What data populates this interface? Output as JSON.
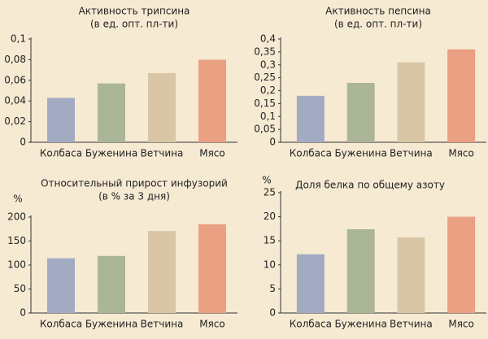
{
  "chart_data": [
    {
      "type": "bar",
      "title": "Активность трипсина",
      "subtitle": "(в ед. опт. пл-ти)",
      "categories": [
        "Колбаса",
        "Буженина",
        "Ветчина",
        "Мясо"
      ],
      "values": [
        0.043,
        0.057,
        0.067,
        0.08
      ],
      "colors": [
        "#a2abc2",
        "#abb597",
        "#d9c6a6",
        "#e9a083"
      ],
      "ylim": [
        0,
        0.1
      ],
      "yticks": [
        0,
        {
          "value": 0.02,
          "label": "0,02"
        },
        {
          "value": 0.04,
          "label": "0,04"
        },
        {
          "value": 0.06,
          "label": "0,06"
        },
        {
          "value": 0.08,
          "label": "0,08"
        },
        {
          "value": 0.1,
          "label": "0,1"
        }
      ]
    },
    {
      "type": "bar",
      "title": "Активность  пепсина",
      "subtitle": "(в ед. опт. пл-ти)",
      "categories": [
        "Колбаса",
        "Буженина",
        "Ветчина",
        "Мясо"
      ],
      "values": [
        0.18,
        0.23,
        0.31,
        0.36
      ],
      "colors": [
        "#a2abc2",
        "#abb597",
        "#d9c6a6",
        "#e9a083"
      ],
      "ylim": [
        0,
        0.4
      ],
      "yticks": [
        0,
        {
          "value": 0.05,
          "label": "0,05"
        },
        {
          "value": 0.1,
          "label": "0,1"
        },
        {
          "value": 0.15,
          "label": "0,15"
        },
        {
          "value": 0.2,
          "label": "0,2"
        },
        {
          "value": 0.25,
          "label": "0,25"
        },
        {
          "value": 0.3,
          "label": "0,3"
        },
        {
          "value": 0.35,
          "label": "0,35"
        },
        {
          "value": 0.4,
          "label": "0,4"
        }
      ]
    },
    {
      "type": "bar",
      "title": "Относительный прирост инфузорий",
      "subtitle": "(в % за 3 дня)",
      "y_label": "%",
      "categories": [
        "Колбаса",
        "Буженина",
        "Ветчина",
        "Мясо"
      ],
      "values": [
        114,
        119,
        171,
        185
      ],
      "colors": [
        "#a2abc2",
        "#abb597",
        "#d9c6a6",
        "#e9a083"
      ],
      "ylim": [
        0,
        200
      ],
      "yticks": [
        0,
        50,
        100,
        150,
        200
      ]
    },
    {
      "type": "bar",
      "title": "Доля белка по общему азоту",
      "y_label": "%",
      "categories": [
        "Колбаса",
        "Буженина",
        "Ветчина",
        "Мясо"
      ],
      "values": [
        12.2,
        17.4,
        15.7,
        20
      ],
      "colors": [
        "#a2abc2",
        "#abb597",
        "#d9c6a6",
        "#e9a083"
      ],
      "ylim": [
        0,
        25
      ],
      "yticks": [
        0,
        5,
        10,
        15,
        20,
        25
      ]
    }
  ]
}
